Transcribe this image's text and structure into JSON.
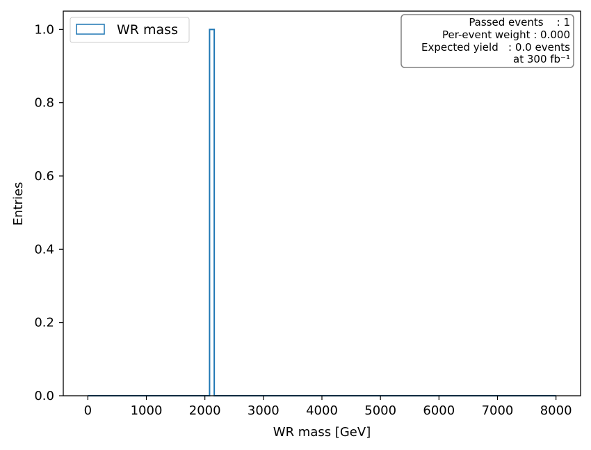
{
  "chart_data": {
    "type": "bar",
    "histtype": "step",
    "xlabel": "WR mass [GeV]",
    "ylabel": "Entries",
    "xlim": [
      -420,
      8420
    ],
    "ylim": [
      0,
      1.05
    ],
    "x_ticks": [
      0,
      1000,
      2000,
      3000,
      4000,
      5000,
      6000,
      7000,
      8000
    ],
    "y_ticks": [
      0.0,
      0.2,
      0.4,
      0.6,
      0.8,
      1.0
    ],
    "x_tick_labels": [
      "0",
      "1000",
      "2000",
      "3000",
      "4000",
      "5000",
      "6000",
      "7000",
      "8000"
    ],
    "y_tick_labels": [
      "0.0",
      "0.2",
      "0.4",
      "0.6",
      "0.8",
      "1.0"
    ],
    "hist_range": [
      0,
      8000
    ],
    "series": [
      {
        "name": "WR mass",
        "color": "#1f77b4",
        "bins": [
          {
            "x_low": 2080,
            "x_high": 2160,
            "count": 1
          }
        ]
      }
    ],
    "legend": {
      "position": "top-left",
      "entries": [
        "WR mass"
      ]
    },
    "info_box": {
      "position": "top-right",
      "lines": [
        "Passed events    : 1",
        "Per-event weight : 0.000",
        "Expected yield   : 0.0 events",
        "at 300 fb⁻¹"
      ]
    },
    "grid": false
  }
}
